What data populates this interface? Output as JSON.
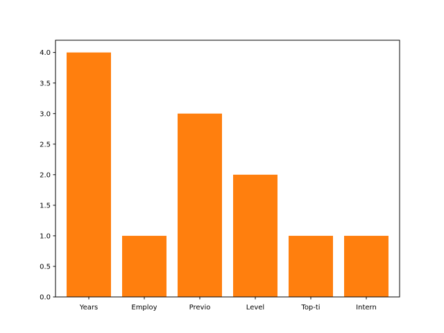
{
  "chart_data": {
    "type": "bar",
    "title": "",
    "xlabel": "",
    "ylabel": "",
    "categories": [
      "Years",
      "Employ",
      "Previo",
      "Level",
      "Top-ti",
      "Intern"
    ],
    "values": [
      4,
      1,
      3,
      2,
      1,
      1
    ],
    "ylim": [
      0,
      4.2
    ],
    "yticks": [
      "0.0",
      "0.5",
      "1.0",
      "1.5",
      "2.0",
      "2.5",
      "3.0",
      "3.5",
      "4.0"
    ],
    "bar_color": "#ff7f0e",
    "grid": false,
    "legend": "none"
  }
}
